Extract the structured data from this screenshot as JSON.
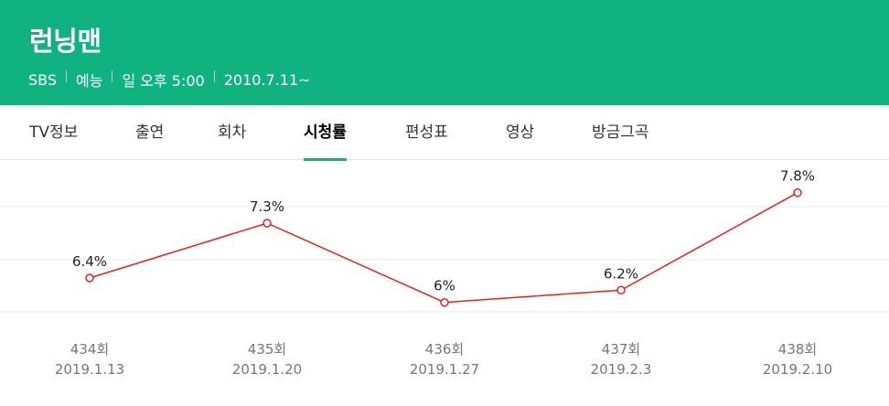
{
  "header": {
    "title": "런닝맨",
    "meta": [
      "SBS",
      "예능",
      "일 오후 5:00",
      "2010.7.11~"
    ]
  },
  "tabs": [
    {
      "label": "TV정보",
      "active": false
    },
    {
      "label": "출연",
      "active": false
    },
    {
      "label": "회차",
      "active": false
    },
    {
      "label": "시청률",
      "active": true
    },
    {
      "label": "편성표",
      "active": false
    },
    {
      "label": "영상",
      "active": false
    },
    {
      "label": "방금그곡",
      "active": false
    }
  ],
  "colors": {
    "brand": "#10b27f",
    "line": "#e52222"
  },
  "chart_data": {
    "type": "line",
    "categories": [
      "434회",
      "435회",
      "436회",
      "437회",
      "438회"
    ],
    "dates": [
      "2019.1.13",
      "2019.1.20",
      "2019.1.27",
      "2019.2.3",
      "2019.2.10"
    ],
    "values": [
      6.4,
      7.3,
      6.0,
      6.2,
      7.8
    ],
    "data_labels": [
      "6.4%",
      "7.3%",
      "6%",
      "6.2%",
      "7.8%"
    ],
    "ylim": [
      5.2,
      8.2
    ],
    "grid": true
  }
}
